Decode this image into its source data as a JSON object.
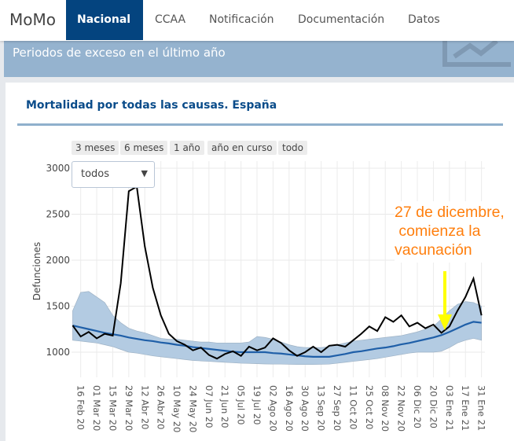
{
  "nav": {
    "brand": "MoMo",
    "tabs": [
      {
        "label": "Nacional",
        "active": true
      },
      {
        "label": "CCAA"
      },
      {
        "label": "Notificación"
      },
      {
        "label": "Documentación"
      },
      {
        "label": "Datos"
      }
    ]
  },
  "banner": {
    "text": "Periodos de exceso en el último año",
    "icon": "line-chart-icon"
  },
  "card": {
    "title": "Mortalidad por todas las causas. España",
    "range_buttons": [
      "3 meses",
      "6 meses",
      "1 año",
      "año en curso",
      "todo"
    ],
    "dropdown": {
      "selected": "todos"
    }
  },
  "colors": {
    "accent": "#04447f",
    "observed": "#000000",
    "expected": "#1f5fa8",
    "band": "#b3cbe2",
    "annotation": "#ff7f0e",
    "arrow": "#ffff00"
  },
  "chart_data": {
    "type": "line",
    "ylabel": "Defunciones",
    "xlabel": "",
    "ylim": [
      0,
      3000
    ],
    "y_ticks": [
      1000,
      1500,
      2000,
      2500,
      3000
    ],
    "x_range": [
      "2020-02-08",
      "2021-02-03"
    ],
    "x_tick_labels": [
      "16 Feb 20",
      "01 Mar 20",
      "15 Mar 20",
      "29 Mar 20",
      "12 Abr 20",
      "26 Abr 20",
      "10 May 20",
      "24 May 20",
      "07 Jun 20",
      "21 Jun 20",
      "05 Jul 20",
      "19 Jul 20",
      "02 Ago 20",
      "16 Ago 20",
      "30 Ago 20",
      "13 Sep 20",
      "27 Sep 20",
      "11 Oct 20",
      "25 Oct 20",
      "08 Nov 20",
      "22 Nov 20",
      "06 Dic 20",
      "20 Dic 20",
      "03 Ene 21",
      "17 Ene 21",
      "31 Ene 21"
    ],
    "x_tick_start": "2020-02-16",
    "x_tick_step_days": 14,
    "grid": true,
    "x_start": "2020-02-09",
    "x_step_days": 7,
    "series": [
      {
        "name": "observed",
        "values": [
          1290,
          1170,
          1220,
          1150,
          1200,
          1180,
          1750,
          2750,
          2800,
          2150,
          1700,
          1400,
          1200,
          1120,
          1080,
          1020,
          1050,
          970,
          930,
          980,
          1010,
          960,
          1060,
          1020,
          1050,
          1150,
          1100,
          1020,
          960,
          1000,
          1060,
          1000,
          1070,
          1080,
          1060,
          1130,
          1200,
          1280,
          1230,
          1380,
          1330,
          1400,
          1280,
          1320,
          1260,
          1300,
          1210,
          1280,
          1450,
          1600,
          1800,
          1400
        ]
      },
      {
        "name": "expected",
        "values": [
          1290,
          1270,
          1250,
          1230,
          1210,
          1195,
          1180,
          1160,
          1145,
          1130,
          1120,
          1105,
          1095,
          1080,
          1070,
          1055,
          1045,
          1035,
          1025,
          1015,
          1005,
          1000,
          1000,
          1000,
          1000,
          990,
          985,
          975,
          965,
          955,
          950,
          950,
          950,
          965,
          980,
          1000,
          1010,
          1025,
          1040,
          1050,
          1065,
          1085,
          1100,
          1120,
          1140,
          1160,
          1185,
          1220,
          1260,
          1300,
          1330,
          1320
        ]
      },
      {
        "name": "upper",
        "values": [
          1450,
          1650,
          1660,
          1600,
          1540,
          1400,
          1320,
          1260,
          1230,
          1210,
          1180,
          1150,
          1140,
          1140,
          1130,
          1120,
          1110,
          1110,
          1100,
          1100,
          1100,
          1100,
          1110,
          1170,
          1160,
          1140,
          1110,
          1080,
          1060,
          1050,
          1050,
          1050,
          1060,
          1080,
          1100,
          1120,
          1130,
          1140,
          1150,
          1160,
          1170,
          1180,
          1200,
          1220,
          1250,
          1280,
          1360,
          1450,
          1520,
          1550,
          1540,
          1500
        ]
      },
      {
        "name": "lower",
        "values": [
          1130,
          1120,
          1110,
          1100,
          1080,
          1060,
          1030,
          1000,
          990,
          975,
          960,
          950,
          940,
          930,
          920,
          910,
          905,
          900,
          895,
          890,
          885,
          880,
          878,
          875,
          872,
          870,
          870,
          868,
          866,
          866,
          866,
          868,
          870,
          880,
          890,
          900,
          910,
          920,
          930,
          945,
          960,
          975,
          990,
          1000,
          1000,
          1000,
          1010,
          1050,
          1100,
          1130,
          1150,
          1130
        ]
      }
    ],
    "annotation": {
      "text_lines": [
        "27 de dicembre,",
        " comienza la",
        "vacunación"
      ],
      "date": "2020-12-27"
    }
  }
}
